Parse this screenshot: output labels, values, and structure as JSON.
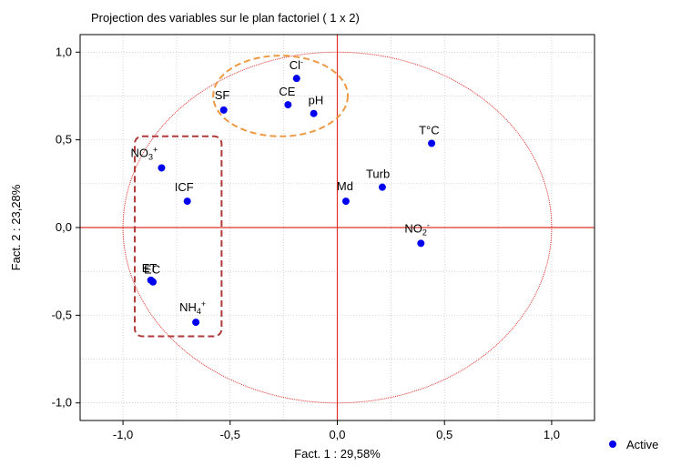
{
  "chart_data": {
    "type": "scatter",
    "title": "Projection des variables sur le plan factoriel ( 1 x 2)",
    "xlabel": "Fact. 1 : 29,58%",
    "ylabel": "Fact. 2 : 23,28%",
    "xlim": [
      -1.2,
      1.2
    ],
    "ylim": [
      -1.1,
      1.1
    ],
    "xticks": [
      "-1,0",
      "-0,5",
      "0,0",
      "0,5",
      "1,0"
    ],
    "xtick_values": [
      -1.0,
      -0.5,
      0.0,
      0.5,
      1.0
    ],
    "yticks": [
      "1,0",
      "0,5",
      "0,0",
      "-0,5",
      "-1,0"
    ],
    "ytick_values": [
      1.0,
      0.5,
      0.0,
      -0.5,
      -1.0
    ],
    "grid": true,
    "legend": {
      "placement": "bottom-right",
      "entries": [
        "Active"
      ]
    },
    "colors": {
      "points": "#0000ee",
      "circle": "#e0302a",
      "axis_lines": "#e0302a",
      "orange_group": "#ee9944",
      "red_group": "#b03a3a",
      "grid": "#bbbbbb"
    },
    "series": [
      {
        "name": "Active",
        "points": [
          {
            "label": "Cl",
            "sup": "-",
            "x": -0.19,
            "y": 0.85
          },
          {
            "label": "CE",
            "sup": "",
            "x": -0.23,
            "y": 0.7
          },
          {
            "label": "pH",
            "sup": "",
            "x": -0.11,
            "y": 0.65
          },
          {
            "label": "SF",
            "sup": "",
            "x": -0.53,
            "y": 0.67
          },
          {
            "label": "T°C",
            "sup": "",
            "x": 0.44,
            "y": 0.48
          },
          {
            "label": "NO",
            "sub": "3",
            "sup": "+",
            "x": -0.82,
            "y": 0.34
          },
          {
            "label": "ICF",
            "sup": "",
            "x": -0.7,
            "y": 0.15
          },
          {
            "label": "Md",
            "sup": "",
            "x": 0.04,
            "y": 0.15
          },
          {
            "label": "Turb",
            "sup": "",
            "x": 0.21,
            "y": 0.23
          },
          {
            "label": "NO",
            "sub": "2",
            "sup": "-",
            "x": 0.39,
            "y": -0.09
          },
          {
            "label": "ET",
            "sup": "",
            "x": -0.87,
            "y": -0.3
          },
          {
            "label": "EC",
            "sup": "",
            "x": -0.86,
            "y": -0.31
          },
          {
            "label": "NH",
            "sub": "4",
            "sup": "+",
            "x": -0.66,
            "y": -0.54
          }
        ]
      }
    ],
    "annotations": [
      {
        "shape": "dashed-ellipse",
        "color": "orange",
        "encloses": [
          "Cl",
          "CE",
          "pH",
          "SF"
        ]
      },
      {
        "shape": "dashed-rounded-rect",
        "color": "dark-red",
        "encloses": [
          "NO3+",
          "ICF",
          "ET",
          "EC",
          "NH4+"
        ]
      },
      {
        "shape": "dotted-circle",
        "color": "red",
        "radius": 1.0
      }
    ]
  }
}
